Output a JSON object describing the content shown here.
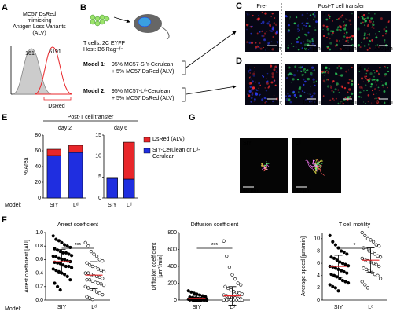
{
  "panel_labels": [
    "A",
    "B",
    "C",
    "D",
    "E",
    "F",
    "G"
  ],
  "panel_a": {
    "title_lines": [
      "MC57 DsRed",
      "mimicking",
      "Antigen Loss Variants",
      "(ALV)"
    ],
    "gray_label": "161",
    "red_label": "5191",
    "xlabel": "DsRed"
  },
  "panel_b": {
    "tcells": "T cells: 2C EYFP",
    "host": "Host: B6 Rag⁻/⁻",
    "model1": {
      "name": "Model 1:",
      "line1": "95% MC57-SIY-Cerulean",
      "line2": "+ 5% MC57 DsRed (ALV)"
    },
    "model2": {
      "name": "Model 2:",
      "line1": "95% MC57-Lᵈ-Cerulean",
      "line2": "+ 5% MC57 DsRed (ALV)"
    }
  },
  "panel_c": {
    "pre": "Pre-",
    "post": "Post-T cell transfer",
    "images": [
      {
        "number": "1",
        "scale": "200 µm"
      },
      {
        "number": "2",
        "scale": "100 µm"
      },
      {
        "number": "3",
        "scale": "200 µm"
      },
      {
        "number": "4",
        "scale": "200 µm"
      }
    ]
  },
  "panel_d": {
    "images": [
      {
        "number": "1",
        "scale": "200 µm"
      },
      {
        "number": "2",
        "scale": "100 µm"
      },
      {
        "number": "3",
        "scale": "200 µm"
      },
      {
        "number": "4",
        "scale": "200 µm"
      }
    ]
  },
  "panel_e": {
    "header": "Post-T cell transfer",
    "model_label": "Model:"
  },
  "panel_f": {
    "model_label": "Model:"
  },
  "panel_g": {
    "images": [
      {
        "label": "SIY",
        "scale": "40 µm"
      },
      {
        "label": "Lᵈ",
        "scale": "40 µm"
      }
    ]
  },
  "chart_data": [
    {
      "type": "bar",
      "stacked": true,
      "title": "day 2",
      "ylabel": "% Area",
      "categories": [
        "SIY",
        "Lᵈ"
      ],
      "series": [
        {
          "color": "#1f2ee0",
          "values": [
            54,
            58
          ]
        },
        {
          "color": "#e8262a",
          "values": [
            8,
            9
          ]
        }
      ],
      "ylim": [
        0,
        80
      ],
      "yticks": [
        0,
        20,
        40,
        60,
        80
      ]
    },
    {
      "type": "bar",
      "stacked": true,
      "title": "day 6",
      "categories": [
        "SIY",
        "Lᵈ"
      ],
      "legend": "right",
      "series": [
        {
          "name": "SIY-Cerulean or Lᵈ-Cerulean",
          "color": "#1f2ee0",
          "values": [
            4.7,
            4.5
          ]
        },
        {
          "name": "DsRed (ALV)",
          "color": "#e8262a",
          "values": [
            0.2,
            8.8
          ]
        }
      ],
      "ylim": [
        0,
        15
      ],
      "yticks": [
        0,
        5,
        10,
        15
      ]
    },
    {
      "type": "strip",
      "title": "Arrest coefficient",
      "ylabel": [
        "Arrest coefficient [AU]"
      ],
      "categories": [
        "SIY",
        "Lᵈ"
      ],
      "annotation": "***",
      "mean_color": "#e8262a",
      "groups": [
        {
          "marker": "filled",
          "mean": 0.57,
          "sd": 0.18,
          "values": [
            0.95,
            0.9,
            0.88,
            0.85,
            0.82,
            0.8,
            0.78,
            0.76,
            0.74,
            0.72,
            0.7,
            0.7,
            0.68,
            0.66,
            0.65,
            0.64,
            0.62,
            0.6,
            0.6,
            0.58,
            0.57,
            0.56,
            0.55,
            0.54,
            0.52,
            0.5,
            0.5,
            0.48,
            0.46,
            0.44,
            0.42,
            0.4,
            0.38,
            0.35,
            0.3,
            0.25,
            0.2,
            0.15
          ]
        },
        {
          "marker": "open",
          "mean": 0.37,
          "sd": 0.2,
          "values": [
            0.85,
            0.8,
            0.72,
            0.68,
            0.65,
            0.6,
            0.58,
            0.55,
            0.52,
            0.5,
            0.48,
            0.46,
            0.44,
            0.42,
            0.4,
            0.4,
            0.38,
            0.36,
            0.35,
            0.34,
            0.32,
            0.3,
            0.3,
            0.28,
            0.26,
            0.25,
            0.24,
            0.22,
            0.2,
            0.18,
            0.16,
            0.15,
            0.12,
            0.1,
            0.08,
            0.05,
            0.03,
            0.01
          ]
        }
      ],
      "ylim": [
        0,
        1
      ],
      "yticks": [
        {
          "value": 0,
          "label": "0.0"
        },
        0.2,
        0.4,
        0.6,
        0.8,
        {
          "value": 1,
          "label": "1.0"
        }
      ]
    },
    {
      "type": "strip",
      "title": "Diffusion coefficient",
      "ylabel": [
        "Diffusion coefficient",
        "[µm²/min]"
      ],
      "categories": [
        "SIY",
        "Lᵈ"
      ],
      "annotation": "***",
      "mean_color": "#e8262a",
      "groups": [
        {
          "marker": "filled",
          "mean": 20,
          "sd": 35,
          "values": [
            110,
            95,
            80,
            70,
            60,
            50,
            40,
            35,
            30,
            25,
            20,
            18,
            15,
            12,
            10,
            8,
            6,
            5,
            4,
            3,
            2,
            2,
            1,
            1,
            0,
            0,
            0,
            0
          ]
        },
        {
          "marker": "open",
          "mean": 50,
          "sd": 110,
          "values": [
            700,
            520,
            390,
            300,
            250,
            200,
            180,
            160,
            140,
            120,
            100,
            90,
            80,
            70,
            60,
            50,
            40,
            30,
            25,
            20,
            15,
            10,
            8,
            5,
            3,
            2,
            1,
            0,
            0,
            0
          ]
        }
      ],
      "ylim": [
        0,
        800
      ],
      "yticks": [
        0,
        200,
        400,
        600,
        800
      ]
    },
    {
      "type": "strip",
      "title": "T cell motility",
      "ylabel": [
        "Average speed [µm/min]"
      ],
      "categories": [
        "SIY",
        "Lᵈ"
      ],
      "annotation": "*",
      "mean_color": "#e8262a",
      "groups": [
        {
          "marker": "filled",
          "mean": 5.5,
          "sd": 1.8,
          "values": [
            10.5,
            9.5,
            9,
            8.5,
            8,
            7.8,
            7.5,
            7,
            6.8,
            6.5,
            6.2,
            6,
            5.8,
            5.6,
            5.5,
            5.4,
            5.2,
            5,
            4.8,
            4.6,
            4.4,
            4.2,
            4,
            3.8,
            3.5,
            3.2,
            3,
            2.8,
            2.5,
            2.2,
            2,
            1.5
          ]
        },
        {
          "marker": "open",
          "mean": 6.5,
          "sd": 2,
          "values": [
            11,
            10.5,
            10,
            9.8,
            9.5,
            9,
            8.8,
            8.5,
            8.2,
            8,
            7.8,
            7.5,
            7.2,
            7,
            6.8,
            6.6,
            6.4,
            6.2,
            6,
            5.8,
            5.5,
            5.2,
            5,
            4.8,
            4.5,
            4.2,
            4,
            3.5,
            3,
            2.5,
            2
          ]
        }
      ],
      "ylim": [
        0,
        11
      ],
      "yticks": [
        0,
        2,
        4,
        6,
        8,
        10
      ]
    }
  ]
}
